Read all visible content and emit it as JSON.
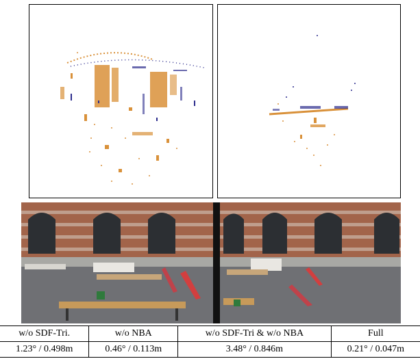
{
  "figure": {
    "top_left_panel": {
      "description_icon": "point-cloud-full-map"
    },
    "top_right_panel": {
      "description_icon": "point-cloud-partial-map"
    },
    "bottom_left_photo": {
      "description_icon": "courtyard-photo-left"
    },
    "bottom_right_photo": {
      "description_icon": "courtyard-photo-right"
    },
    "colors": {
      "orange": "#d9913a",
      "blue": "#2b2b8c",
      "gray": "#6f6f6f"
    }
  },
  "table": {
    "headers": [
      "w/o SDF-Tri.",
      "w/o NBA",
      "w/o SDF-Tri & w/o NBA",
      "Full"
    ],
    "values": [
      "1.23° / 0.498m",
      "0.46° / 0.113m",
      "3.48° / 0.846m",
      "0.21° / 0.047m"
    ]
  }
}
